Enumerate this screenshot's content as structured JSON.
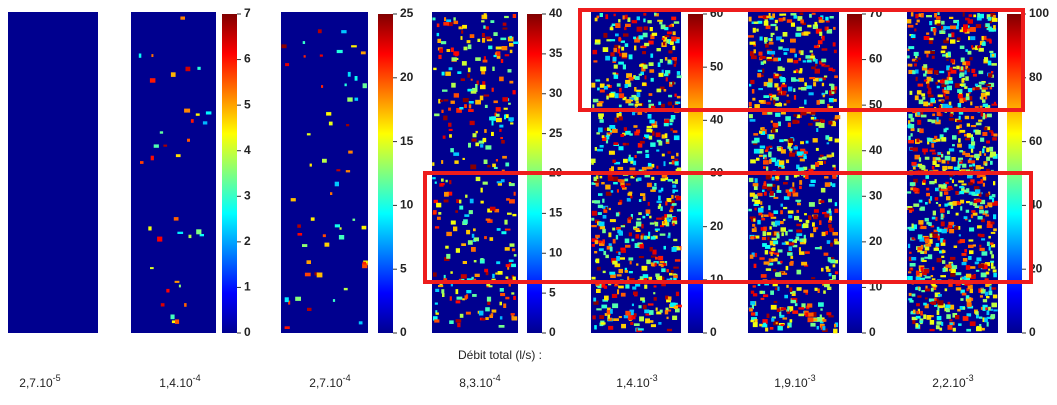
{
  "x_label": "Débit total (l/s) :",
  "panels": [
    {
      "flow_rate": {
        "base": "2,7.10",
        "exponent": "-5"
      }
    },
    {
      "flow_rate": {
        "base": "1,4.10",
        "exponent": "-4"
      },
      "colorbar": {
        "lim": [
          0,
          7
        ],
        "ticks": [
          0,
          1,
          2,
          3,
          4,
          5,
          6,
          7
        ]
      }
    },
    {
      "flow_rate": {
        "base": "2,7.10",
        "exponent": "-4"
      },
      "colorbar": {
        "lim": [
          0,
          25
        ],
        "ticks": [
          0,
          5,
          10,
          15,
          20,
          25
        ]
      }
    },
    {
      "flow_rate": {
        "base": "8,3.10",
        "exponent": "-4"
      },
      "colorbar": {
        "lim": [
          0,
          40
        ],
        "ticks": [
          0,
          5,
          10,
          15,
          20,
          25,
          30,
          35,
          40
        ]
      }
    },
    {
      "flow_rate": {
        "base": "1,4.10",
        "exponent": "-3"
      },
      "colorbar": {
        "lim": [
          0,
          60
        ],
        "ticks": [
          0,
          10,
          20,
          30,
          40,
          50,
          60
        ]
      }
    },
    {
      "flow_rate": {
        "base": "1,9.10",
        "exponent": "-3"
      },
      "colorbar": {
        "lim": [
          0,
          70
        ],
        "ticks": [
          0,
          10,
          20,
          30,
          40,
          50,
          60,
          70
        ]
      }
    },
    {
      "flow_rate": {
        "base": "2,2.10",
        "exponent": "-3"
      },
      "colorbar": {
        "lim": [
          0,
          100
        ],
        "ticks": [
          0,
          20,
          40,
          60,
          80,
          100
        ]
      }
    }
  ]
}
